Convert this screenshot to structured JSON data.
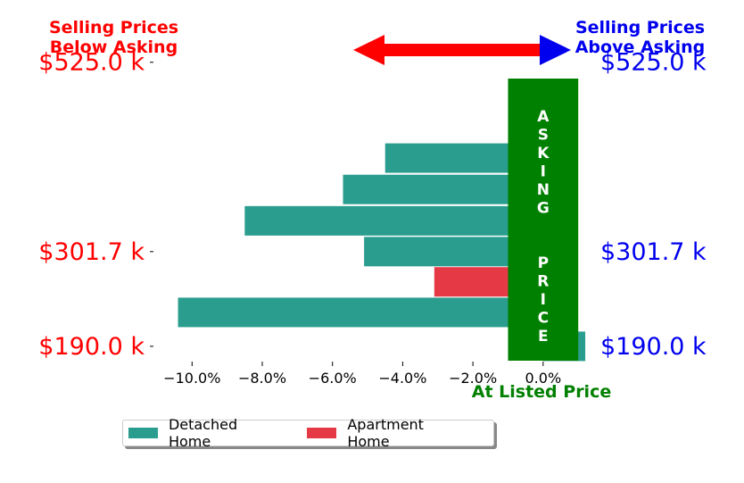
{
  "colors": {
    "detached": "#2a9d8f",
    "apartment": "#e63946",
    "asking_band": "#008000",
    "below": "#ff0000",
    "above": "#0000ee"
  },
  "headers": {
    "below_asking": "Selling Prices\nBelow Asking",
    "above_asking": "Selling Prices\nAbove Asking"
  },
  "chart_data": {
    "type": "bar",
    "orientation": "horizontal",
    "series": [
      {
        "name": "Detached Home",
        "color": "#2a9d8f"
      },
      {
        "name": "Apartment Home",
        "color": "#e63946"
      }
    ],
    "bars": [
      {
        "price": 190.0,
        "value": 1.2,
        "series": "Detached Home"
      },
      {
        "price": 230.0,
        "value": -10.4,
        "series": "Detached Home"
      },
      {
        "price": 266.0,
        "value": -3.1,
        "series": "Apartment Home"
      },
      {
        "price": 301.7,
        "value": -5.1,
        "series": "Detached Home"
      },
      {
        "price": 338.0,
        "value": -8.5,
        "series": "Detached Home"
      },
      {
        "price": 375.0,
        "value": -5.7,
        "series": "Detached Home"
      },
      {
        "price": 412.0,
        "value": -4.5,
        "series": "Detached Home"
      }
    ],
    "xlim": [
      -11.1,
      1.3
    ],
    "ylim": [
      172,
      530
    ],
    "x_ticks": [
      -10,
      -8,
      -6,
      -4,
      -2,
      0
    ],
    "x_tick_labels": [
      "−10.0%",
      "−8.0%",
      "−6.0%",
      "−4.0%",
      "−2.0%",
      "0.0%"
    ],
    "y_ticks": [
      190.0,
      301.7,
      525.0
    ],
    "y_tick_labels": [
      "$190.0 k",
      "$301.7 k",
      "$525.0 k"
    ],
    "asking_band": {
      "x_from": -1.0,
      "x_to": 1.0,
      "label": "ASKING  PRICE"
    },
    "xlabel": "At Listed Price",
    "legend": {
      "position": "bottom-left",
      "entries": [
        "Detached Home",
        "Apartment Home"
      ]
    }
  }
}
